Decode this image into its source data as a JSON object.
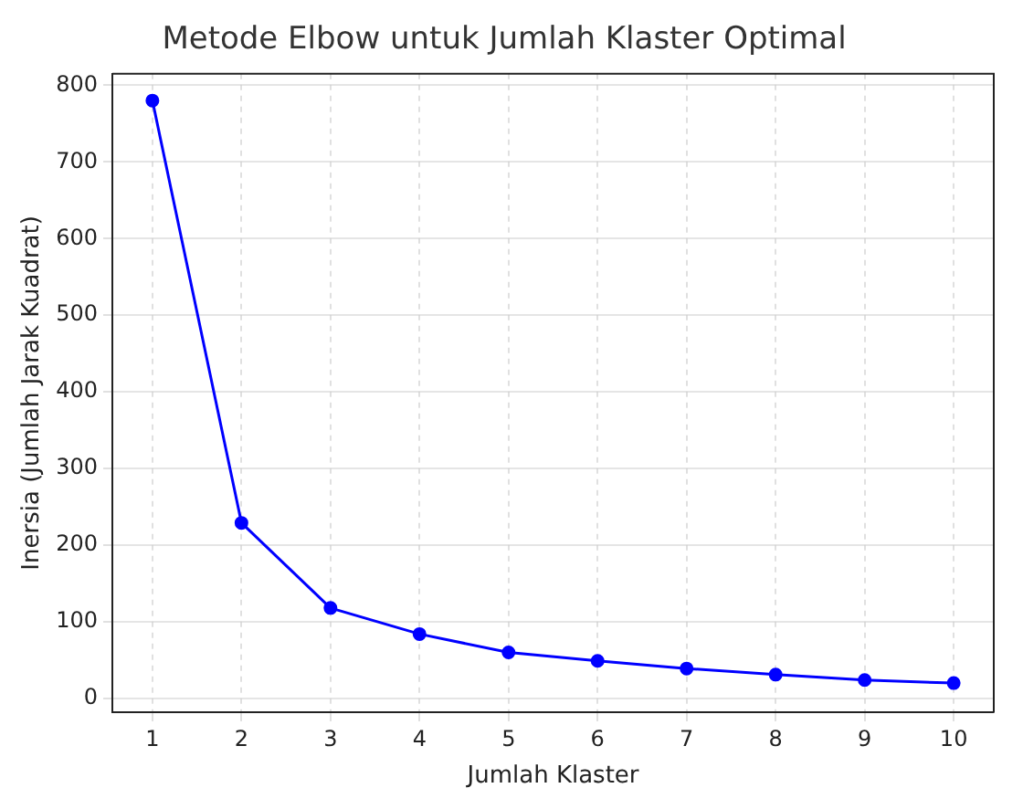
{
  "chart_data": {
    "type": "line",
    "title": "Metode Elbow untuk Jumlah Klaster Optimal",
    "xlabel": "Jumlah Klaster",
    "ylabel": "Inersia (Jumlah Jarak Kuadrat)",
    "x": [
      1,
      2,
      3,
      4,
      5,
      6,
      7,
      8,
      9,
      10
    ],
    "series": [
      {
        "color": "#0000ff",
        "values": [
          780,
          229,
          118,
          84,
          60,
          49,
          39,
          31,
          24,
          20
        ]
      }
    ],
    "xlim": [
      0.55,
      10.45
    ],
    "xticks": [
      1,
      2,
      3,
      4,
      5,
      6,
      7,
      8,
      9,
      10
    ],
    "ylim": [
      -18,
      815
    ],
    "yticks": [
      0,
      100,
      200,
      300,
      400,
      500,
      600,
      700,
      800
    ],
    "grid": true,
    "marker": "circle",
    "line_style": "solid",
    "legend": false
  }
}
